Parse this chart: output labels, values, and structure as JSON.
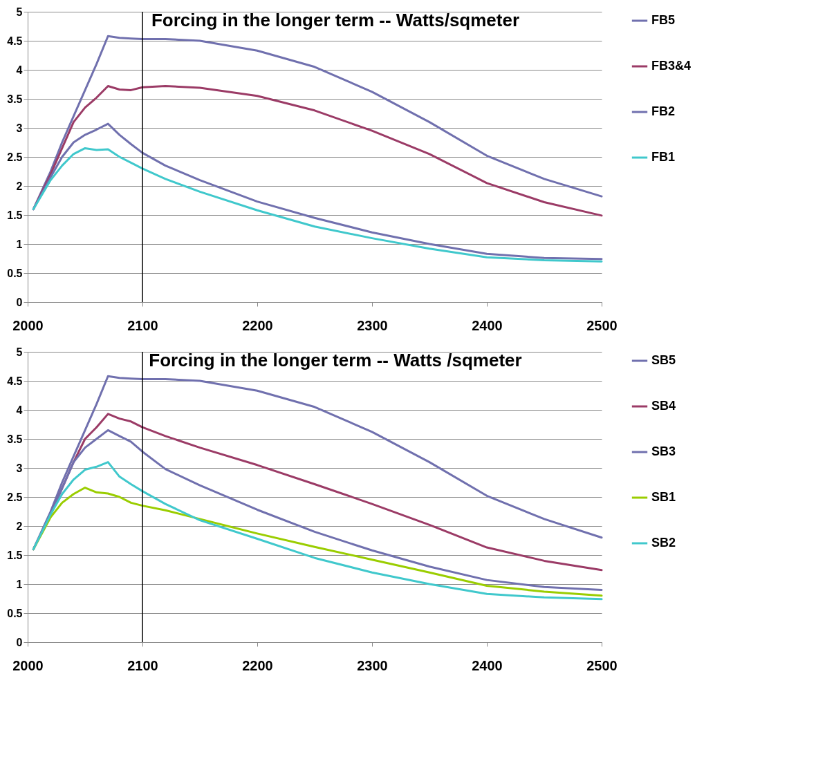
{
  "chart_data": [
    {
      "type": "line",
      "title": "Forcing in the longer term -- Watts/sqmeter",
      "x": [
        2005,
        2020,
        2030,
        2040,
        2050,
        2060,
        2070,
        2080,
        2090,
        2100,
        2120,
        2150,
        2200,
        2250,
        2300,
        2350,
        2400,
        2450,
        2500
      ],
      "series": [
        {
          "name": "FB5",
          "color": "#7070ae",
          "values": [
            1.6,
            2.25,
            2.75,
            3.2,
            3.65,
            4.1,
            4.58,
            4.55,
            4.54,
            4.53,
            4.53,
            4.5,
            4.33,
            4.05,
            3.62,
            3.1,
            2.52,
            2.12,
            1.82
          ]
        },
        {
          "name": "FB3&4",
          "color": "#9b3b66",
          "values": [
            1.6,
            2.2,
            2.65,
            3.1,
            3.35,
            3.52,
            3.72,
            3.66,
            3.65,
            3.7,
            3.72,
            3.69,
            3.55,
            3.3,
            2.95,
            2.55,
            2.05,
            1.72,
            1.49
          ]
        },
        {
          "name": "FB2",
          "color": "#7070ae",
          "values": [
            1.6,
            2.15,
            2.5,
            2.75,
            2.88,
            2.97,
            3.07,
            2.88,
            2.72,
            2.57,
            2.35,
            2.1,
            1.73,
            1.45,
            1.2,
            1.0,
            0.83,
            0.76,
            0.74
          ]
        },
        {
          "name": "FB1",
          "color": "#40c8cc",
          "values": [
            1.6,
            2.1,
            2.35,
            2.55,
            2.65,
            2.62,
            2.63,
            2.5,
            2.4,
            2.3,
            2.12,
            1.9,
            1.58,
            1.3,
            1.1,
            0.92,
            0.77,
            0.72,
            0.7
          ]
        }
      ],
      "xlim": [
        2000,
        2500
      ],
      "xticks": [
        2000,
        2100,
        2200,
        2300,
        2400,
        2500
      ],
      "ylim": [
        0,
        5
      ],
      "yticks": [
        0,
        0.5,
        1,
        1.5,
        2,
        2.5,
        3,
        3.5,
        4,
        4.5,
        5
      ],
      "ref_lines": [
        {
          "axis": "x",
          "value": 2100,
          "color": "#000000"
        }
      ],
      "grid": "y",
      "legend": "right",
      "line_style": "solid"
    },
    {
      "type": "line",
      "title": "Forcing in the longer term -- Watts /sqmeter",
      "x": [
        2005,
        2020,
        2030,
        2040,
        2050,
        2060,
        2070,
        2080,
        2090,
        2100,
        2120,
        2150,
        2200,
        2250,
        2300,
        2350,
        2400,
        2450,
        2500
      ],
      "series": [
        {
          "name": "SB5",
          "color": "#7070ae",
          "values": [
            1.6,
            2.25,
            2.75,
            3.2,
            3.65,
            4.1,
            4.58,
            4.55,
            4.54,
            4.53,
            4.53,
            4.5,
            4.33,
            4.05,
            3.62,
            3.1,
            2.52,
            2.12,
            1.8
          ]
        },
        {
          "name": "SB4",
          "color": "#9b3b66",
          "values": [
            1.6,
            2.2,
            2.65,
            3.1,
            3.5,
            3.7,
            3.93,
            3.85,
            3.8,
            3.7,
            3.55,
            3.35,
            3.05,
            2.72,
            2.38,
            2.02,
            1.63,
            1.4,
            1.24
          ]
        },
        {
          "name": "SB3",
          "color": "#7070ae",
          "values": [
            1.6,
            2.2,
            2.65,
            3.1,
            3.35,
            3.5,
            3.65,
            3.55,
            3.45,
            3.28,
            2.98,
            2.7,
            2.28,
            1.9,
            1.58,
            1.3,
            1.07,
            0.95,
            0.9
          ]
        },
        {
          "name": "SB1",
          "color": "#9acd00",
          "values": [
            1.6,
            2.15,
            2.4,
            2.55,
            2.66,
            2.58,
            2.56,
            2.5,
            2.4,
            2.35,
            2.27,
            2.12,
            1.87,
            1.64,
            1.42,
            1.2,
            0.97,
            0.87,
            0.8
          ]
        },
        {
          "name": "SB2",
          "color": "#40c8cc",
          "values": [
            1.6,
            2.2,
            2.55,
            2.8,
            2.97,
            3.02,
            3.1,
            2.85,
            2.72,
            2.6,
            2.38,
            2.1,
            1.78,
            1.45,
            1.2,
            1.0,
            0.83,
            0.77,
            0.74
          ]
        }
      ],
      "xlim": [
        2000,
        2500
      ],
      "xticks": [
        2000,
        2100,
        2200,
        2300,
        2400,
        2500
      ],
      "ylim": [
        0,
        5
      ],
      "yticks": [
        0,
        0.5,
        1,
        1.5,
        2,
        2.5,
        3,
        3.5,
        4,
        4.5,
        5
      ],
      "ref_lines": [
        {
          "axis": "x",
          "value": 2100,
          "color": "#000000"
        }
      ],
      "grid": "y",
      "legend": "right",
      "line_style": "solid"
    }
  ]
}
